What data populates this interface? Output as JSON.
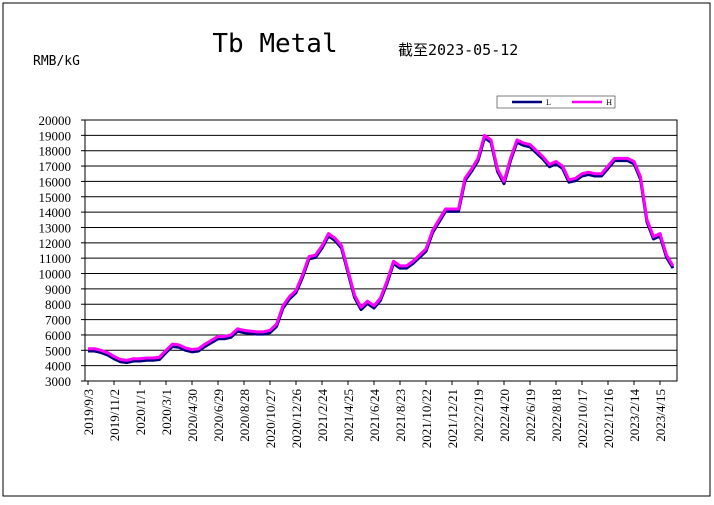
{
  "chart_data": {
    "type": "line",
    "title": "Tb Metal",
    "subtitle": "截至2023-05-12",
    "y_label": "RMB/kG",
    "categories": [
      "2019/9/3",
      null,
      null,
      null,
      "2019/11/2",
      null,
      null,
      null,
      "2020/1/1",
      null,
      null,
      null,
      "2020/3/1",
      null,
      null,
      null,
      "2020/4/30",
      null,
      null,
      null,
      "2020/6/29",
      null,
      null,
      null,
      "2020/8/28",
      null,
      null,
      null,
      "2020/10/27",
      null,
      null,
      null,
      "2020/12/26",
      null,
      null,
      null,
      "2021/2/24",
      null,
      null,
      null,
      "2021/4/25",
      null,
      null,
      null,
      "2021/6/24",
      null,
      null,
      null,
      "2021/8/23",
      null,
      null,
      null,
      "2021/10/22",
      null,
      null,
      null,
      "2021/12/21",
      null,
      null,
      null,
      "2022/2/19",
      null,
      null,
      null,
      "2022/4/20",
      null,
      null,
      null,
      "2022/6/19",
      null,
      null,
      null,
      "2022/8/18",
      null,
      null,
      null,
      "2022/10/17",
      null,
      null,
      null,
      "2022/12/16",
      null,
      null,
      null,
      "2023/2/14",
      null,
      null,
      null,
      "2023/4/15",
      null,
      null
    ],
    "series": [
      {
        "name": "L",
        "color": "#000080",
        "values": [
          4950,
          4950,
          4850,
          4700,
          4450,
          4250,
          4200,
          4300,
          4300,
          4350,
          4350,
          4400,
          4850,
          5250,
          5200,
          5000,
          4900,
          4950,
          5250,
          5500,
          5750,
          5750,
          5850,
          6250,
          6150,
          6100,
          6050,
          6050,
          6150,
          6550,
          7750,
          8350,
          8750,
          9750,
          10950,
          11050,
          11650,
          12450,
          12150,
          11650,
          10050,
          8450,
          7650,
          8050,
          7750,
          8250,
          9350,
          10650,
          10350,
          10350,
          10650,
          11050,
          11450,
          12650,
          13350,
          14050,
          14050,
          14050,
          16050,
          16650,
          17350,
          18850,
          18550,
          16650,
          15850,
          17350,
          18550,
          18350,
          18250,
          17850,
          17450,
          16950,
          17150,
          16850,
          15950,
          16050,
          16350,
          16450,
          16350,
          16350,
          16850,
          17350,
          17350,
          17350,
          17150,
          16150,
          13350,
          12250,
          12450,
          11050,
          10350
        ]
      },
      {
        "name": "H",
        "color": "#ff00ff",
        "values": [
          5100,
          5100,
          5000,
          4850,
          4600,
          4400,
          4350,
          4450,
          4450,
          4500,
          4500,
          4550,
          5000,
          5400,
          5350,
          5150,
          5050,
          5100,
          5400,
          5650,
          5900,
          5900,
          6000,
          6400,
          6300,
          6250,
          6200,
          6200,
          6300,
          6700,
          7900,
          8500,
          8900,
          9900,
          11100,
          11200,
          11800,
          12600,
          12300,
          11800,
          10200,
          8600,
          7800,
          8200,
          7900,
          8400,
          9500,
          10800,
          10500,
          10500,
          10800,
          11200,
          11600,
          12800,
          13500,
          14200,
          14200,
          14200,
          16200,
          16800,
          17500,
          19000,
          18700,
          16800,
          16000,
          17500,
          18700,
          18500,
          18400,
          18000,
          17600,
          17100,
          17300,
          17000,
          16100,
          16200,
          16500,
          16600,
          16500,
          16500,
          17000,
          17500,
          17500,
          17500,
          17300,
          16300,
          13500,
          12400,
          12600,
          11200,
          10500
        ]
      }
    ],
    "ylim": [
      3000,
      20000
    ],
    "yticks": [
      3000,
      4000,
      5000,
      6000,
      7000,
      8000,
      9000,
      10000,
      11000,
      12000,
      13000,
      14000,
      15000,
      16000,
      17000,
      18000,
      19000,
      20000
    ],
    "grid": true,
    "legend": "top-right"
  }
}
